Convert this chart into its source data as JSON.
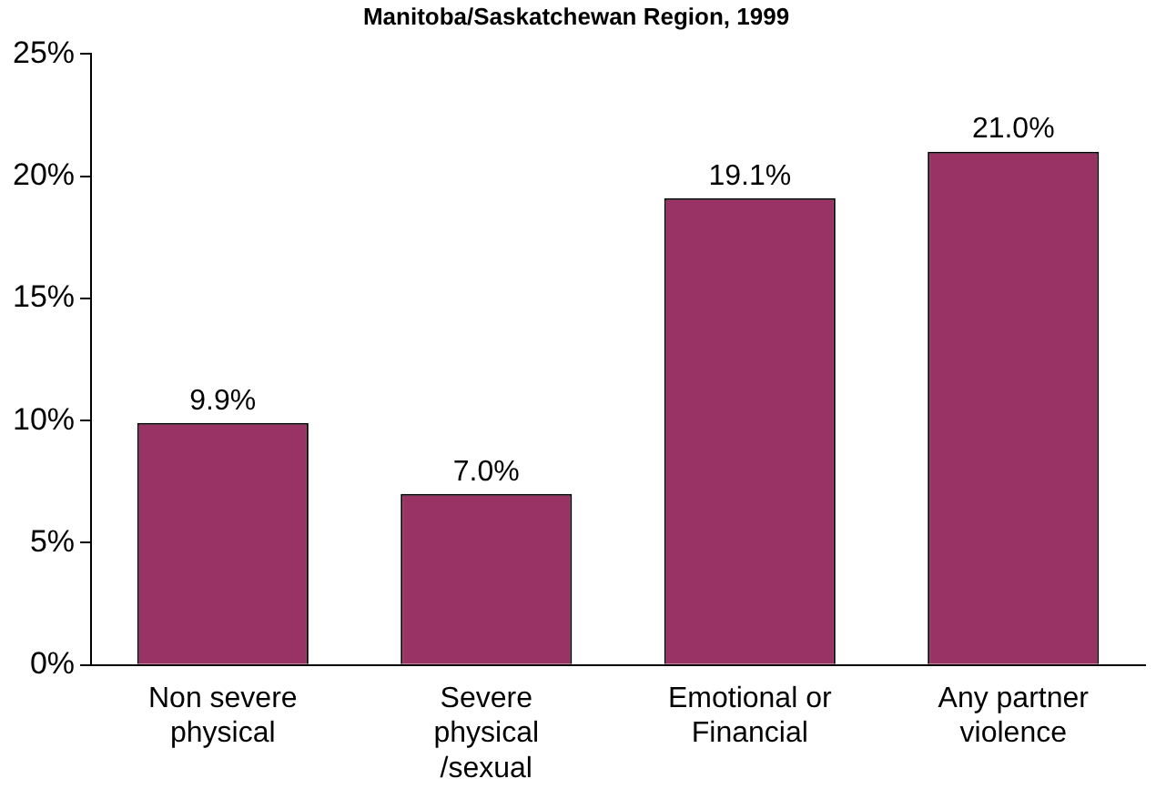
{
  "chart_data": {
    "type": "bar",
    "title": "Manitoba/Saskatchewan Region, 1999",
    "categories": [
      "Non severe physical",
      "Severe physical /sexual",
      "Emotional or Financial",
      "Any partner violence"
    ],
    "values": [
      9.9,
      7.0,
      19.1,
      21.0
    ],
    "value_labels": [
      "9.9%",
      "7.0%",
      "19.1%",
      "21.0%"
    ],
    "color": "#993366",
    "ylim": [
      0,
      25
    ],
    "yticks": [
      {
        "value": 0,
        "label": "0%"
      },
      {
        "value": 5,
        "label": "5%"
      },
      {
        "value": 10,
        "label": "10%"
      },
      {
        "value": 15,
        "label": "15%"
      },
      {
        "value": 20,
        "label": "20%"
      },
      {
        "value": 25,
        "label": "25%"
      }
    ],
    "grid": false
  }
}
